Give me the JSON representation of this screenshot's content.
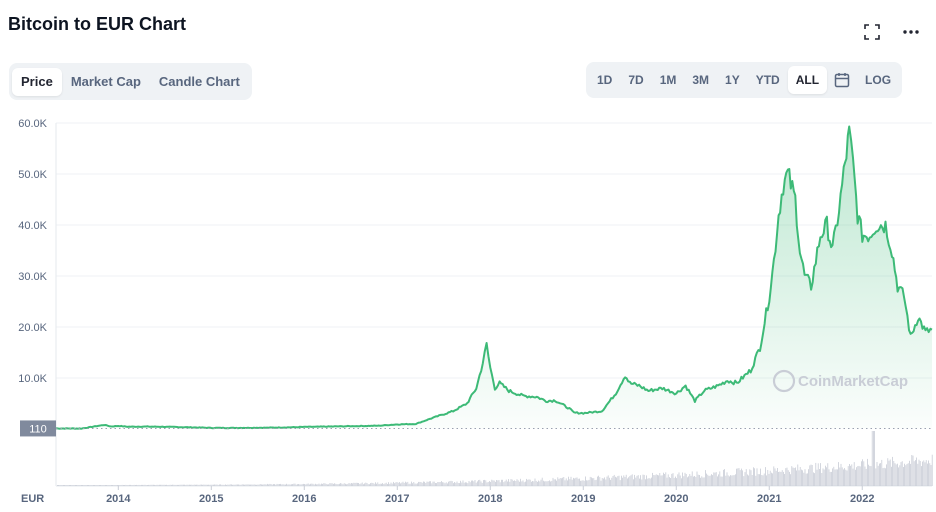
{
  "header": {
    "title": "Bitcoin to EUR Chart",
    "fullscreen_icon": "fullscreen-icon",
    "more_icon": "more-horizontal-icon"
  },
  "view_tabs": [
    {
      "label": "Price",
      "active": true
    },
    {
      "label": "Market Cap",
      "active": false
    },
    {
      "label": "Candle Chart",
      "active": false
    }
  ],
  "range_tabs": [
    {
      "label": "1D",
      "active": false
    },
    {
      "label": "7D",
      "active": false
    },
    {
      "label": "1M",
      "active": false
    },
    {
      "label": "3M",
      "active": false
    },
    {
      "label": "1Y",
      "active": false
    },
    {
      "label": "YTD",
      "active": false
    },
    {
      "label": "ALL",
      "active": true
    }
  ],
  "calendar_icon": "calendar-icon",
  "log_label": "LOG",
  "watermark": "CoinMarketCap",
  "colors": {
    "line": "#3dba77",
    "fill_top": "#3dba77",
    "volume": "#c8ccd6",
    "grid": "#eff2f5",
    "baseline_marker": "#808a9d"
  },
  "chart_data": {
    "type": "area",
    "currency_label": "EUR",
    "y_ticks": [
      "60.0K",
      "50.0K",
      "40.0K",
      "30.0K",
      "20.0K",
      "10.0K"
    ],
    "y_tick_values": [
      60000,
      50000,
      40000,
      30000,
      20000,
      10000
    ],
    "ylim": [
      0,
      60000
    ],
    "x_ticks": [
      "2014",
      "2015",
      "2016",
      "2017",
      "2018",
      "2019",
      "2020",
      "2021",
      "2022"
    ],
    "x_tick_values": [
      2014,
      2015,
      2016,
      2017,
      2018,
      2019,
      2020,
      2021,
      2022
    ],
    "xlim": [
      2013.33,
      2022.75
    ],
    "baseline_label": "110",
    "baseline_value": 110,
    "grid": true,
    "series": [
      {
        "x": [
          2013.33,
          2013.6,
          2013.85,
          2013.92,
          2014.0,
          2014.1,
          2014.3,
          2014.6,
          2015.0,
          2015.3,
          2015.6,
          2015.9,
          2016.0,
          2016.5,
          2016.8,
          2017.0,
          2017.2,
          2017.4,
          2017.6,
          2017.75,
          2017.85,
          2017.92,
          2017.96,
          2018.0,
          2018.05,
          2018.1,
          2018.2,
          2018.35,
          2018.5,
          2018.6,
          2018.7,
          2018.85,
          2018.9,
          2019.0,
          2019.2,
          2019.35,
          2019.45,
          2019.5,
          2019.6,
          2019.7,
          2019.85,
          2020.0,
          2020.1,
          2020.2,
          2020.3,
          2020.45,
          2020.55,
          2020.65,
          2020.8,
          2020.9,
          2021.0,
          2021.05,
          2021.1,
          2021.15,
          2021.2,
          2021.28,
          2021.33,
          2021.38,
          2021.45,
          2021.55,
          2021.62,
          2021.68,
          2021.75,
          2021.8,
          2021.86,
          2021.9,
          2021.95,
          2022.0,
          2022.08,
          2022.15,
          2022.25,
          2022.32,
          2022.38,
          2022.45,
          2022.52,
          2022.6,
          2022.68,
          2022.75
        ],
        "values": [
          110,
          90,
          800,
          500,
          600,
          450,
          480,
          400,
          220,
          220,
          250,
          350,
          400,
          550,
          650,
          900,
          1000,
          2300,
          3500,
          5000,
          8000,
          13000,
          16500,
          12000,
          8000,
          9000,
          7500,
          6500,
          6300,
          5500,
          5600,
          4000,
          3200,
          3100,
          3500,
          7000,
          10500,
          9000,
          8500,
          7500,
          8000,
          7000,
          8500,
          5500,
          7500,
          8500,
          9500,
          9000,
          11500,
          16000,
          26000,
          33000,
          42000,
          48000,
          50000,
          45000,
          35000,
          30000,
          28000,
          38000,
          40000,
          35000,
          43000,
          50000,
          58000,
          52000,
          42000,
          38000,
          38000,
          40000,
          40000,
          35000,
          28000,
          26000,
          18000,
          22000,
          19000,
          19500
        ]
      }
    ]
  }
}
